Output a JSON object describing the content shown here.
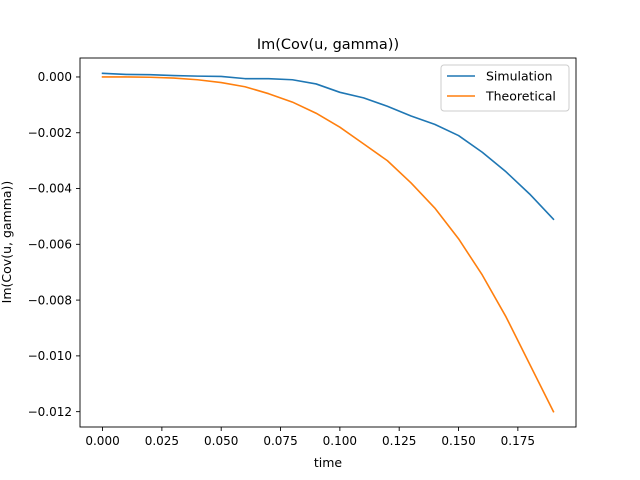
{
  "chart_data": {
    "type": "line",
    "title": "Im(Cov(u, gamma))",
    "xlabel": "time",
    "ylabel": "Im(Cov(u, gamma))",
    "xlim": [
      -0.0095,
      0.1995
    ],
    "ylim": [
      -0.01255,
      0.00068
    ],
    "xticks": [
      0.0,
      0.025,
      0.05,
      0.075,
      0.1,
      0.125,
      0.15,
      0.175
    ],
    "xtick_labels": [
      "0.000",
      "0.025",
      "0.050",
      "0.075",
      "0.100",
      "0.125",
      "0.150",
      "0.175"
    ],
    "yticks": [
      0.0,
      -0.002,
      -0.004,
      -0.006,
      -0.008,
      -0.01,
      -0.012
    ],
    "ytick_labels": [
      "0.000",
      "−0.002",
      "−0.004",
      "−0.006",
      "−0.008",
      "−0.010",
      "−0.012"
    ],
    "grid": false,
    "legend_position": "top-right",
    "x": [
      0.0,
      0.01,
      0.02,
      0.03,
      0.04,
      0.05,
      0.06,
      0.07,
      0.08,
      0.09,
      0.1,
      0.11,
      0.12,
      0.13,
      0.14,
      0.15,
      0.16,
      0.17,
      0.18,
      0.19
    ],
    "series": [
      {
        "name": "Simulation",
        "color": "#1f77b4",
        "values": [
          0.00013,
          9e-05,
          8e-05,
          5e-05,
          3e-05,
          2e-05,
          -6e-05,
          -6e-05,
          -0.0001,
          -0.00025,
          -0.00055,
          -0.00075,
          -0.00105,
          -0.0014,
          -0.0017,
          -0.0021,
          -0.0027,
          -0.0034,
          -0.0042,
          -0.0051
        ]
      },
      {
        "name": "Theoretical",
        "color": "#ff7f0e",
        "values": [
          0.0,
          0.0,
          -1e-05,
          -4e-05,
          -0.0001,
          -0.0002,
          -0.00035,
          -0.0006,
          -0.0009,
          -0.0013,
          -0.0018,
          -0.0024,
          -0.003,
          -0.0038,
          -0.0047,
          -0.0058,
          -0.0071,
          -0.0086,
          -0.0103,
          -0.012
        ]
      }
    ]
  }
}
